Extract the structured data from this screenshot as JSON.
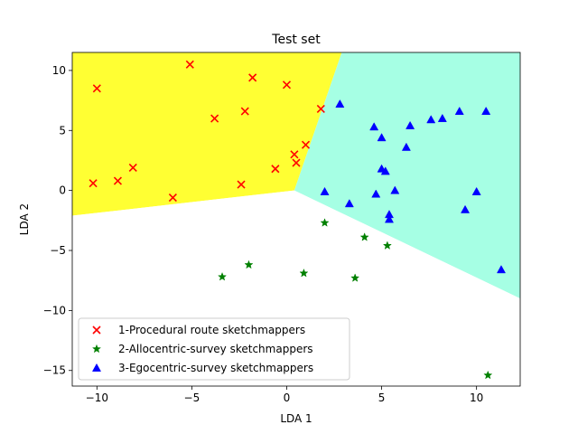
{
  "chart_data": {
    "type": "scatter",
    "title": "Test set",
    "xlabel": "LDA 1",
    "ylabel": "LDA 2",
    "xlim": [
      -11.3,
      12.3
    ],
    "ylim": [
      -16.3,
      11.5
    ],
    "xticks": [
      -10,
      -5,
      0,
      5,
      10
    ],
    "yticks": [
      -15,
      -10,
      -5,
      0,
      5,
      10
    ],
    "xtick_labels": [
      "−10",
      "−5",
      "0",
      "5",
      "10"
    ],
    "ytick_labels": [
      "−15",
      "−10",
      "−5",
      "0",
      "5",
      "10"
    ],
    "legend_position": "lower-left",
    "decision_regions": [
      {
        "name": "region-1",
        "color": "#ffff33",
        "polygon": [
          [
            -11.3,
            11.5
          ],
          [
            2.9,
            11.5
          ],
          [
            0.4,
            0.0
          ],
          [
            -11.3,
            -2.1
          ]
        ]
      },
      {
        "name": "region-3",
        "color": "#a6ffe4",
        "polygon": [
          [
            2.9,
            11.5
          ],
          [
            12.3,
            11.5
          ],
          [
            12.3,
            -9.0
          ],
          [
            0.4,
            0.0
          ]
        ]
      },
      {
        "name": "region-2",
        "color": "#ffffff",
        "polygon": [
          [
            -11.3,
            -2.1
          ],
          [
            0.4,
            0.0
          ],
          [
            12.3,
            -9.0
          ],
          [
            12.3,
            -16.3
          ],
          [
            -11.3,
            -16.3
          ]
        ]
      }
    ],
    "series": [
      {
        "name": "1-Procedural route sketchmappers",
        "marker": "x",
        "color": "#ff0000",
        "points": [
          [
            -10.2,
            0.6
          ],
          [
            -10.0,
            8.5
          ],
          [
            -8.9,
            0.8
          ],
          [
            -8.1,
            1.9
          ],
          [
            -6.0,
            -0.6
          ],
          [
            -5.1,
            10.5
          ],
          [
            -3.8,
            6.0
          ],
          [
            -2.4,
            0.5
          ],
          [
            -2.2,
            6.6
          ],
          [
            -1.8,
            9.4
          ],
          [
            -0.6,
            1.8
          ],
          [
            0.0,
            8.8
          ],
          [
            0.4,
            3.0
          ],
          [
            0.5,
            2.3
          ],
          [
            1.0,
            3.8
          ],
          [
            1.8,
            6.8
          ]
        ]
      },
      {
        "name": "2-Allocentric-survey sketchmappers",
        "marker": "star",
        "color": "#008000",
        "points": [
          [
            -3.4,
            -7.2
          ],
          [
            -2.0,
            -6.2
          ],
          [
            0.9,
            -6.9
          ],
          [
            2.0,
            -2.7
          ],
          [
            3.6,
            -7.3
          ],
          [
            4.1,
            -3.9
          ],
          [
            5.3,
            -4.6
          ],
          [
            10.6,
            -15.4
          ]
        ]
      },
      {
        "name": "3-Egocentric-survey sketchmappers",
        "marker": "triangle",
        "color": "#0000ff",
        "points": [
          [
            2.0,
            -0.1
          ],
          [
            2.8,
            7.2
          ],
          [
            3.3,
            -1.1
          ],
          [
            4.6,
            5.3
          ],
          [
            4.7,
            -0.3
          ],
          [
            5.0,
            4.4
          ],
          [
            5.0,
            1.8
          ],
          [
            5.2,
            1.6
          ],
          [
            5.4,
            -2.0
          ],
          [
            5.4,
            -2.4
          ],
          [
            5.7,
            0.0
          ],
          [
            6.3,
            3.6
          ],
          [
            6.5,
            5.4
          ],
          [
            7.6,
            5.9
          ],
          [
            8.2,
            6.0
          ],
          [
            9.1,
            6.6
          ],
          [
            9.4,
            -1.6
          ],
          [
            10.0,
            -0.1
          ],
          [
            10.5,
            6.6
          ],
          [
            11.3,
            -6.6
          ]
        ]
      }
    ]
  }
}
